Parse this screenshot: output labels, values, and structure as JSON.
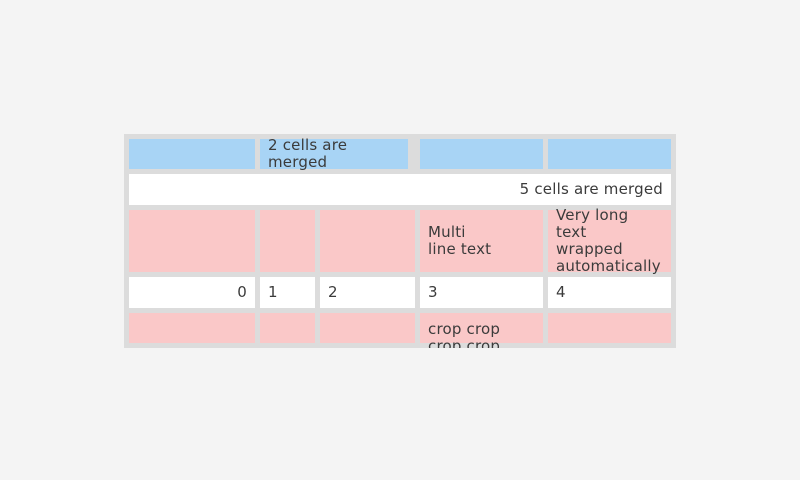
{
  "page": {
    "background_color": "#f4f4f4"
  },
  "table": {
    "border_color": "#dcdcdc",
    "colors": {
      "header_blue": "#a8d4f5",
      "highlight_pink": "#fac8c8",
      "cell_white": "#ffffff",
      "text": "#3b3b3b"
    },
    "rows": [
      {
        "cells": [
          {
            "text": ""
          },
          {
            "text": "2 cells are merged"
          },
          {
            "text": ""
          },
          {
            "text": ""
          }
        ]
      },
      {
        "cells": [
          {
            "text": "5 cells are merged"
          }
        ]
      },
      {
        "cells": [
          {
            "text": ""
          },
          {
            "text": ""
          },
          {
            "text": ""
          },
          {
            "text": "Multi\nline text"
          },
          {
            "text": "Very long text\nwrapped\nautomatically"
          }
        ]
      },
      {
        "cells": [
          {
            "text": "0"
          },
          {
            "text": "1"
          },
          {
            "text": "2"
          },
          {
            "text": "3"
          },
          {
            "text": "4"
          }
        ]
      },
      {
        "cells": [
          {
            "text": ""
          },
          {
            "text": ""
          },
          {
            "text": ""
          },
          {
            "text": "crop crop\ncrop crop"
          },
          {
            "text": ""
          }
        ]
      }
    ]
  }
}
